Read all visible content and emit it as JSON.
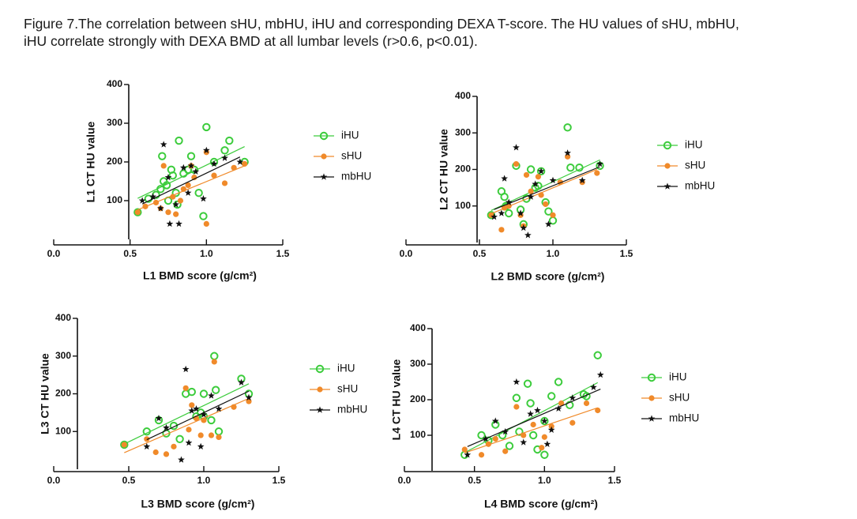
{
  "caption": [
    "Figure 7.The correlation between sHU, mbHU, iHU and corresponding DEXA T-score. The HU values of sHU, mbHU,",
    "iHU correlate strongly with DEXA BMD at all lumbar levels (r>0.6, p<0.01)."
  ],
  "chart_data": [
    {
      "type": "scatter",
      "xlabel": "L1 BMD score (g/cm²)",
      "ylabel": "L1 CT HU value",
      "xlim": [
        0,
        1.5
      ],
      "xticks": [
        {
          "value": 0,
          "label": "0.0"
        },
        0.5,
        {
          "value": 1,
          "label": "1.0"
        },
        1.5
      ],
      "ylim": [
        0,
        400
      ],
      "yticks": [
        100,
        200,
        300,
        400
      ],
      "series": [
        {
          "name": "iHU",
          "color": "#3ccc3c",
          "x": [
            0.55,
            0.62,
            0.67,
            0.7,
            0.71,
            0.72,
            0.74,
            0.75,
            0.77,
            0.78,
            0.8,
            0.81,
            0.82,
            0.85,
            0.88,
            0.9,
            0.92,
            0.95,
            0.98,
            1.0,
            1.05,
            1.12,
            1.15,
            1.25
          ],
          "values": [
            70,
            105,
            115,
            130,
            215,
            150,
            140,
            100,
            180,
            165,
            120,
            90,
            255,
            170,
            180,
            215,
            180,
            120,
            60,
            290,
            200,
            230,
            255,
            200
          ]
        },
        {
          "name": "sHU",
          "color": "#f08a2a",
          "x": [
            0.55,
            0.6,
            0.67,
            0.7,
            0.72,
            0.75,
            0.78,
            0.8,
            0.83,
            0.85,
            0.88,
            0.9,
            0.92,
            1.0,
            1.0,
            1.05,
            1.12,
            1.18,
            1.25
          ],
          "values": [
            70,
            85,
            95,
            80,
            190,
            70,
            110,
            65,
            100,
            130,
            140,
            190,
            160,
            40,
            225,
            165,
            145,
            185,
            195
          ]
        },
        {
          "name": "mbHU",
          "color": "#111111",
          "x": [
            0.58,
            0.65,
            0.7,
            0.72,
            0.75,
            0.76,
            0.8,
            0.82,
            0.85,
            0.88,
            0.9,
            0.93,
            0.98,
            1.0,
            1.05,
            1.12,
            1.22
          ],
          "values": [
            100,
            110,
            80,
            245,
            160,
            40,
            90,
            40,
            185,
            120,
            190,
            175,
            105,
            230,
            195,
            210,
            200
          ]
        }
      ]
    },
    {
      "type": "scatter",
      "xlabel": "L2 BMD score (g/cm²)",
      "ylabel": "L2 CT HU value",
      "xlim": [
        0,
        1.5
      ],
      "xticks": [
        {
          "value": 0,
          "label": "0.0"
        },
        0.5,
        {
          "value": 1,
          "label": "1.0"
        },
        1.5
      ],
      "ylim": [
        0,
        400
      ],
      "yticks": [
        100,
        200,
        300,
        400
      ],
      "series": [
        {
          "name": "iHU",
          "color": "#3ccc3c",
          "x": [
            0.58,
            0.65,
            0.67,
            0.68,
            0.7,
            0.75,
            0.78,
            0.8,
            0.82,
            0.85,
            0.88,
            0.9,
            0.92,
            0.95,
            0.97,
            1.0,
            1.1,
            1.12,
            1.18,
            1.32
          ],
          "values": [
            75,
            140,
            125,
            100,
            80,
            210,
            90,
            50,
            120,
            200,
            150,
            155,
            195,
            110,
            85,
            60,
            315,
            205,
            205,
            210
          ]
        },
        {
          "name": "sHU",
          "color": "#f08a2a",
          "x": [
            0.58,
            0.65,
            0.67,
            0.7,
            0.75,
            0.78,
            0.8,
            0.82,
            0.85,
            0.9,
            0.92,
            0.95,
            1.0,
            1.05,
            1.1,
            1.2,
            1.3
          ],
          "values": [
            75,
            35,
            95,
            100,
            215,
            75,
            45,
            185,
            140,
            180,
            130,
            105,
            75,
            165,
            235,
            165,
            190
          ]
        },
        {
          "name": "mbHU",
          "color": "#111111",
          "x": [
            0.6,
            0.65,
            0.67,
            0.7,
            0.75,
            0.78,
            0.8,
            0.83,
            0.85,
            0.88,
            0.92,
            0.97,
            1.0,
            1.1,
            1.2,
            1.32
          ],
          "values": [
            70,
            80,
            175,
            110,
            260,
            80,
            40,
            20,
            125,
            160,
            195,
            50,
            170,
            245,
            170,
            215
          ]
        }
      ]
    },
    {
      "type": "scatter",
      "xlabel": "L3 BMD score (g/cm²)",
      "ylabel": "L3 CT HU value",
      "xlim": [
        0,
        1.5
      ],
      "xticks": [
        {
          "value": 0,
          "label": "0.0"
        },
        0.5,
        {
          "value": 1,
          "label": "1.0"
        },
        1.5
      ],
      "ylim": [
        0,
        400
      ],
      "yticks": [
        100,
        200,
        300,
        400
      ],
      "series": [
        {
          "name": "iHU",
          "color": "#3ccc3c",
          "x": [
            0.47,
            0.62,
            0.7,
            0.75,
            0.8,
            0.84,
            0.88,
            0.92,
            0.95,
            0.98,
            1.0,
            1.0,
            1.05,
            1.07,
            1.08,
            1.1,
            1.25,
            1.3
          ],
          "values": [
            65,
            100,
            130,
            95,
            115,
            80,
            200,
            205,
            140,
            150,
            200,
            140,
            130,
            300,
            210,
            100,
            240,
            200
          ]
        },
        {
          "name": "sHU",
          "color": "#f08a2a",
          "x": [
            0.47,
            0.62,
            0.68,
            0.75,
            0.8,
            0.88,
            0.9,
            0.92,
            0.95,
            0.98,
            1.0,
            1.05,
            1.07,
            1.1,
            1.2,
            1.3
          ],
          "values": [
            65,
            80,
            45,
            40,
            60,
            215,
            105,
            170,
            135,
            90,
            130,
            90,
            285,
            85,
            165,
            180
          ]
        },
        {
          "name": "mbHU",
          "color": "#111111",
          "x": [
            0.62,
            0.7,
            0.75,
            0.85,
            0.88,
            0.9,
            0.92,
            0.95,
            0.98,
            1.0,
            1.05,
            1.1,
            1.25,
            1.3
          ],
          "values": [
            60,
            135,
            110,
            25,
            265,
            70,
            155,
            160,
            60,
            145,
            195,
            160,
            230,
            190
          ]
        }
      ]
    },
    {
      "type": "scatter",
      "xlabel": "L4 BMD score (g/cm²)",
      "ylabel": "L4 CT HU value",
      "xlim": [
        0,
        1.5
      ],
      "xticks": [
        {
          "value": 0,
          "label": "0.0"
        },
        0.5,
        {
          "value": 1,
          "label": "1.0"
        },
        1.5
      ],
      "ylim": [
        0,
        400
      ],
      "yticks": [
        100,
        200,
        300,
        400
      ],
      "series": [
        {
          "name": "iHU",
          "color": "#3ccc3c",
          "x": [
            0.43,
            0.55,
            0.6,
            0.65,
            0.7,
            0.75,
            0.8,
            0.82,
            0.88,
            0.9,
            0.92,
            0.95,
            1.0,
            1.0,
            1.05,
            1.1,
            1.18,
            1.28,
            1.3,
            1.38
          ],
          "values": [
            45,
            100,
            85,
            130,
            100,
            70,
            205,
            110,
            245,
            190,
            100,
            60,
            45,
            140,
            210,
            250,
            185,
            215,
            210,
            325
          ]
        },
        {
          "name": "sHU",
          "color": "#f08a2a",
          "x": [
            0.43,
            0.55,
            0.6,
            0.65,
            0.72,
            0.8,
            0.85,
            0.92,
            0.98,
            1.0,
            1.05,
            1.12,
            1.2,
            1.3,
            1.38
          ],
          "values": [
            60,
            45,
            75,
            90,
            55,
            180,
            100,
            130,
            65,
            95,
            125,
            190,
            135,
            190,
            170
          ]
        },
        {
          "name": "mbHU",
          "color": "#111111",
          "x": [
            0.45,
            0.58,
            0.65,
            0.72,
            0.8,
            0.85,
            0.9,
            0.95,
            1.0,
            1.02,
            1.05,
            1.1,
            1.2,
            1.35,
            1.4
          ],
          "values": [
            45,
            90,
            140,
            110,
            250,
            80,
            160,
            170,
            140,
            75,
            115,
            175,
            205,
            235,
            270
          ]
        }
      ]
    }
  ]
}
